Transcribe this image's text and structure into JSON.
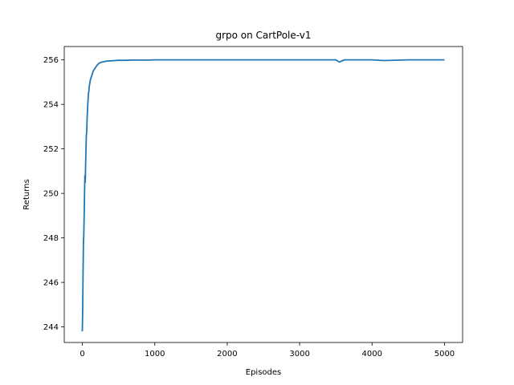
{
  "chart_data": {
    "type": "line",
    "title": "grpo on CartPole-v1",
    "xlabel": "Episodes",
    "ylabel": "Returns",
    "xlim": [
      -250,
      5250
    ],
    "ylim": [
      243.3,
      256.6
    ],
    "xticks": [
      0,
      1000,
      2000,
      3000,
      4000,
      5000
    ],
    "yticks": [
      244,
      246,
      248,
      250,
      252,
      254,
      256
    ],
    "grid": false,
    "legend": "none",
    "series": [
      {
        "color": "#1f77b4",
        "x": [
          0,
          5,
          10,
          15,
          20,
          25,
          30,
          35,
          40,
          45,
          50,
          55,
          60,
          65,
          70,
          75,
          80,
          85,
          90,
          95,
          100,
          110,
          120,
          130,
          140,
          150,
          160,
          170,
          180,
          190,
          200,
          215,
          230,
          250,
          270,
          300,
          330,
          360,
          400,
          450,
          500,
          600,
          700,
          800,
          900,
          1000,
          1200,
          1500,
          1700,
          2000,
          2250,
          2500,
          3000,
          3500,
          3550,
          3580,
          3620,
          4000,
          4160,
          4500,
          5000
        ],
        "y": [
          243.8,
          244.8,
          246.4,
          247.8,
          248.1,
          249.0,
          250.1,
          250.8,
          250.5,
          251.3,
          252.0,
          252.6,
          252.8,
          253.3,
          253.7,
          254.0,
          254.3,
          254.5,
          254.6,
          254.8,
          254.9,
          255.1,
          255.2,
          255.3,
          255.4,
          255.5,
          255.55,
          255.6,
          255.65,
          255.7,
          255.75,
          255.8,
          255.85,
          255.88,
          255.9,
          255.92,
          255.94,
          255.95,
          255.96,
          255.97,
          255.98,
          255.98,
          255.99,
          255.99,
          255.99,
          256.0,
          256.0,
          256.0,
          256.0,
          256.0,
          256.0,
          256.0,
          256.0,
          256.0,
          255.9,
          255.95,
          256.0,
          256.0,
          255.97,
          256.0,
          256.0
        ]
      }
    ]
  }
}
